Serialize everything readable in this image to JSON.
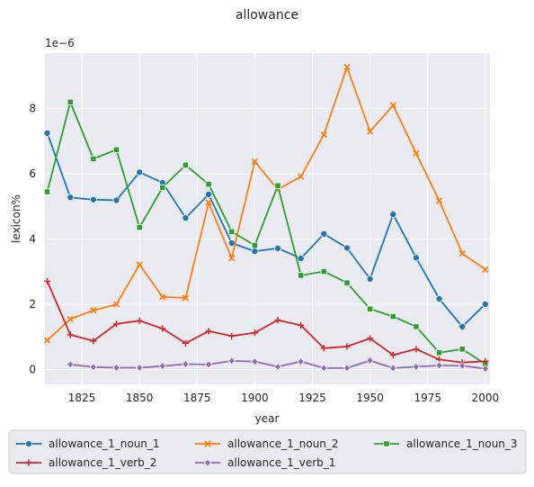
{
  "chart_data": {
    "type": "line",
    "title": "allowance",
    "xlabel": "year",
    "ylabel": "lexicon%",
    "y_scale_note": "1e−6",
    "xlim": [
      1809,
      2002
    ],
    "ylim": [
      -0.45,
      9.7
    ],
    "x_ticks": [
      1825,
      1850,
      1875,
      1900,
      1925,
      1950,
      1975,
      2000
    ],
    "y_ticks": [
      0,
      2,
      4,
      6,
      8
    ],
    "grid": true,
    "legend_placement": "below",
    "series": [
      {
        "name": "allowance_1_noun_1",
        "color": "#1f77b4",
        "marker": "circle",
        "x": [
          1810,
          1820,
          1830,
          1840,
          1850,
          1860,
          1870,
          1880,
          1890,
          1900,
          1910,
          1920,
          1930,
          1940,
          1950,
          1960,
          1970,
          1980,
          1990,
          2000
        ],
        "y": [
          7.25,
          5.28,
          5.21,
          5.19,
          6.05,
          5.73,
          4.65,
          5.37,
          3.88,
          3.63,
          3.72,
          3.41,
          4.16,
          3.73,
          2.78,
          4.76,
          3.43,
          2.17,
          1.32,
          2.01
        ]
      },
      {
        "name": "allowance_1_noun_2",
        "color": "#ff7f0e",
        "marker": "x",
        "x": [
          1810,
          1820,
          1830,
          1840,
          1850,
          1860,
          1870,
          1880,
          1890,
          1900,
          1910,
          1920,
          1930,
          1940,
          1950,
          1960,
          1970,
          1980,
          1990,
          2000
        ],
        "y": [
          0.9,
          1.55,
          1.82,
          2.0,
          3.22,
          2.23,
          2.2,
          5.12,
          3.42,
          6.38,
          5.52,
          5.92,
          7.2,
          9.27,
          7.3,
          8.1,
          6.63,
          5.18,
          3.56,
          3.07
        ]
      },
      {
        "name": "allowance_1_noun_3",
        "color": "#2ca02c",
        "marker": "square",
        "x": [
          1810,
          1820,
          1830,
          1840,
          1850,
          1860,
          1870,
          1880,
          1890,
          1900,
          1910,
          1920,
          1930,
          1940,
          1950,
          1960,
          1970,
          1980,
          1990,
          2000
        ],
        "y": [
          5.45,
          8.2,
          6.46,
          6.74,
          4.36,
          5.58,
          6.27,
          5.68,
          4.23,
          3.81,
          5.64,
          2.89,
          3.01,
          2.66,
          1.86,
          1.63,
          1.32,
          0.52,
          0.63,
          0.17
        ]
      },
      {
        "name": "allowance_1_verb_2",
        "color": "#d62728",
        "marker": "plus",
        "x": [
          1810,
          1820,
          1830,
          1840,
          1850,
          1860,
          1870,
          1880,
          1890,
          1900,
          1910,
          1920,
          1930,
          1940,
          1950,
          1960,
          1970,
          1980,
          1990,
          2000
        ],
        "y": [
          2.71,
          1.07,
          0.88,
          1.4,
          1.5,
          1.26,
          0.81,
          1.18,
          1.03,
          1.13,
          1.52,
          1.36,
          0.66,
          0.71,
          0.96,
          0.45,
          0.63,
          0.31,
          0.22,
          0.26
        ]
      },
      {
        "name": "allowance_1_verb_1",
        "color": "#9467bd",
        "marker": "diamond",
        "x": [
          1820,
          1830,
          1840,
          1850,
          1860,
          1870,
          1880,
          1890,
          1900,
          1910,
          1920,
          1930,
          1940,
          1950,
          1960,
          1970,
          1980,
          1990,
          2000
        ],
        "y": [
          0.16,
          0.08,
          0.06,
          0.06,
          0.11,
          0.17,
          0.16,
          0.27,
          0.25,
          0.09,
          0.25,
          0.05,
          0.05,
          0.28,
          0.05,
          0.09,
          0.13,
          0.12,
          0.03
        ]
      }
    ]
  }
}
